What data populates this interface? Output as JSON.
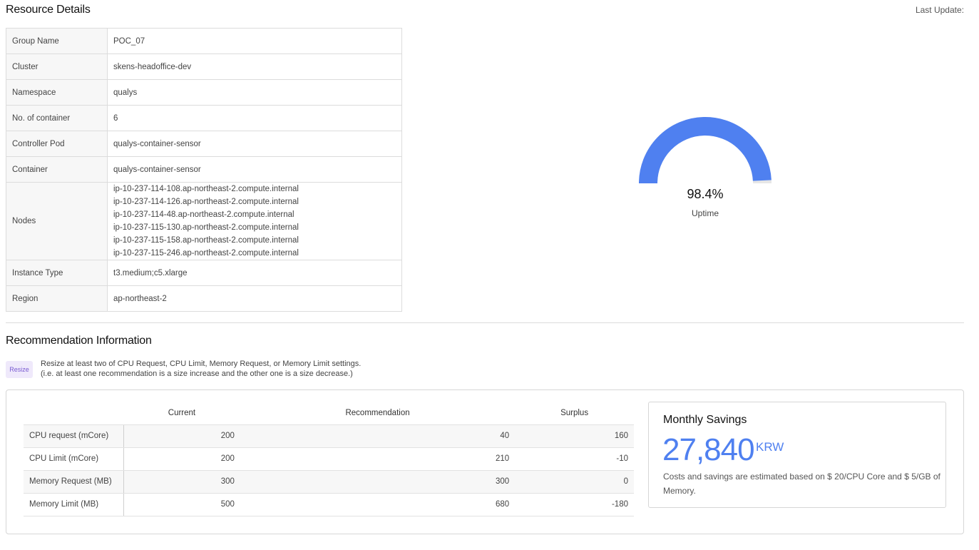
{
  "resource_details": {
    "title": "Resource Details",
    "last_update_label": "Last Update:",
    "rows": [
      {
        "key": "Group Name",
        "value": "POC_07"
      },
      {
        "key": "Cluster",
        "value": "skens-headoffice-dev"
      },
      {
        "key": "Namespace",
        "value": "qualys"
      },
      {
        "key": "No. of container",
        "value": "6"
      },
      {
        "key": "Controller Pod",
        "value": "qualys-container-sensor"
      },
      {
        "key": "Container",
        "value": "qualys-container-sensor"
      }
    ],
    "nodes": {
      "key": "Nodes",
      "values": [
        "ip-10-237-114-108.ap-northeast-2.compute.internal",
        "ip-10-237-114-126.ap-northeast-2.compute.internal",
        "ip-10-237-114-48.ap-northeast-2.compute.internal",
        "ip-10-237-115-130.ap-northeast-2.compute.internal",
        "ip-10-237-115-158.ap-northeast-2.compute.internal",
        "ip-10-237-115-246.ap-northeast-2.compute.internal"
      ]
    },
    "rows_after": [
      {
        "key": "Instance Type",
        "value": "t3.medium;c5.xlarge"
      },
      {
        "key": "Region",
        "value": "ap-northeast-2"
      }
    ]
  },
  "uptime": {
    "value_text": "98.4%",
    "fraction": 0.984,
    "label": "Uptime",
    "fill_color": "#4f80f0",
    "track_color": "#e6e6e6"
  },
  "recommendation": {
    "title": "Recommendation Information",
    "badge": "Resize",
    "description_line1": "Resize at least two of CPU Request, CPU Limit, Memory Request, or Memory Limit settings.",
    "description_line2": "(i.e. at least one recommendation is a size increase and the other one is a size decrease.)",
    "columns": [
      "Current",
      "Recommendation",
      "Surplus"
    ],
    "rows": [
      {
        "metric": "CPU request (mCore)",
        "current": "200",
        "recommendation": "40",
        "surplus": "160"
      },
      {
        "metric": "CPU Limit (mCore)",
        "current": "200",
        "recommendation": "210",
        "surplus": "-10"
      },
      {
        "metric": "Memory Request (MB)",
        "current": "300",
        "recommendation": "300",
        "surplus": "0"
      },
      {
        "metric": "Memory Limit (MB)",
        "current": "500",
        "recommendation": "680",
        "surplus": "-180"
      }
    ]
  },
  "savings": {
    "title": "Monthly Savings",
    "value": "27,840",
    "unit": "KRW",
    "note": "Costs and savings are estimated based on $ 20/CPU Core and $ 5/GB of Memory.",
    "accent_color": "#4f80f0"
  }
}
